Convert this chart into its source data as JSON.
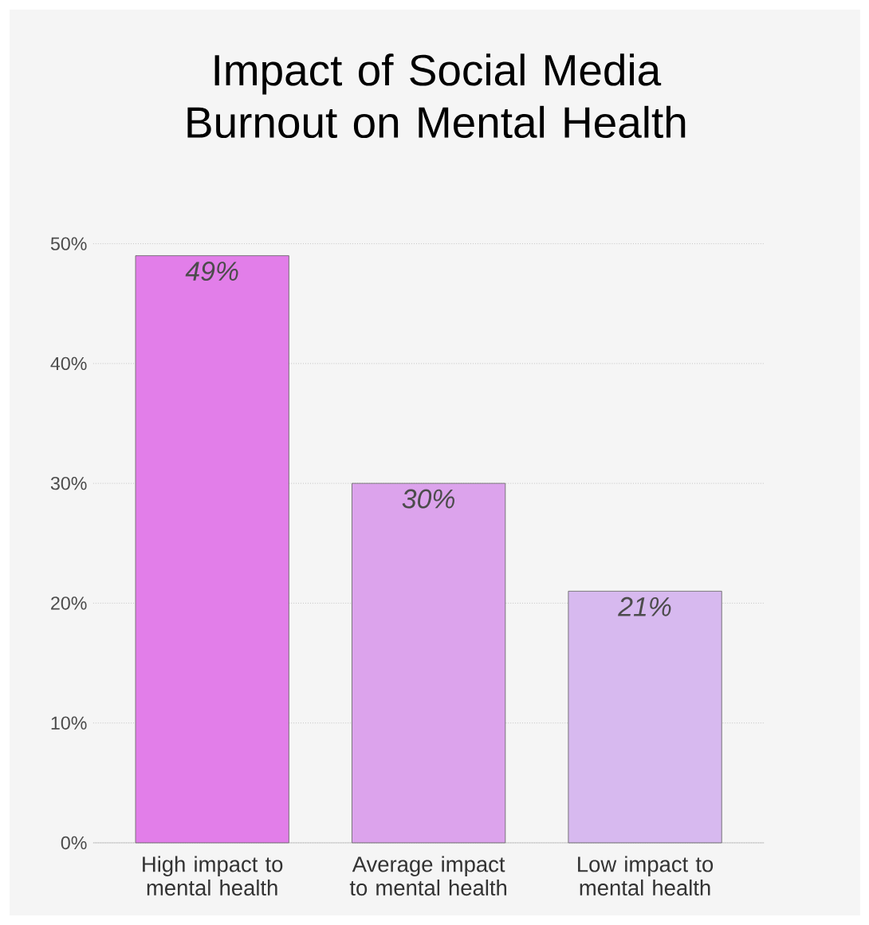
{
  "chart_data": {
    "type": "bar",
    "title": "Impact of Social Media Burnout on Mental Health",
    "categories": [
      "High impact to mental health",
      "Average impact to mental health",
      "Low impact to mental health"
    ],
    "values": [
      49,
      30,
      21
    ],
    "colors": [
      "#e27ee9",
      "#dca3ec",
      "#d7b9ef"
    ],
    "value_labels": [
      "49%",
      "30%",
      "21%"
    ],
    "ylim": [
      0,
      50
    ],
    "yticks": [
      {
        "value": 0,
        "label": "0%"
      },
      {
        "value": 10,
        "label": "10%"
      },
      {
        "value": 20,
        "label": "20%"
      },
      {
        "value": 30,
        "label": "30%"
      },
      {
        "value": 40,
        "label": "40%"
      },
      {
        "value": 50,
        "label": "50%"
      }
    ],
    "grid": "y"
  }
}
